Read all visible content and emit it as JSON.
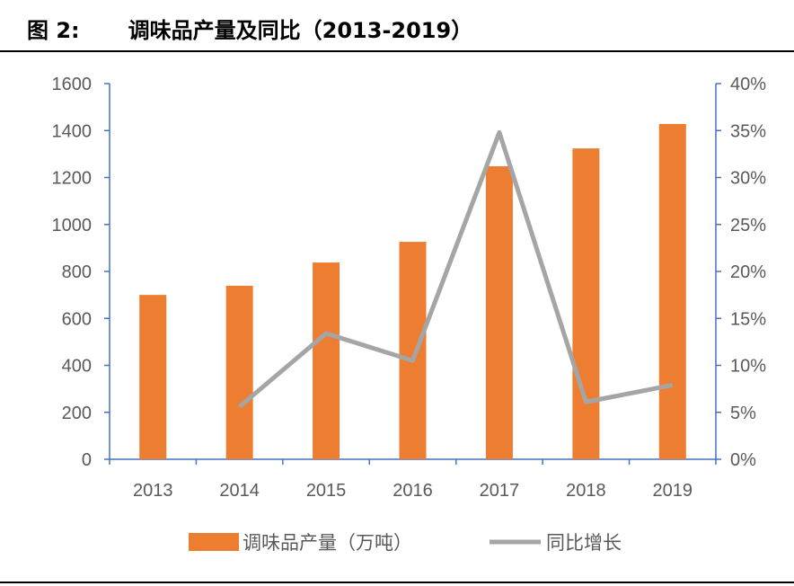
{
  "title": {
    "label": "图 2:",
    "text": "调味品产量及同比（2013-2019）"
  },
  "chart_data": {
    "type": "bar",
    "title": "调味品产量及同比（2013-2019）",
    "categories": [
      "2013",
      "2014",
      "2015",
      "2016",
      "2017",
      "2018",
      "2019"
    ],
    "series": [
      {
        "name": "调味品产量（万吨）",
        "type": "bar",
        "axis": "left",
        "color": "#ED7D31",
        "values": [
          700,
          739,
          838,
          926,
          1248,
          1324,
          1428
        ]
      },
      {
        "name": "同比增长",
        "type": "line",
        "axis": "right",
        "color": "#A5A5A5",
        "values": [
          null,
          5.6,
          13.4,
          10.5,
          34.8,
          6.1,
          7.9
        ]
      }
    ],
    "left_axis": {
      "ylim": [
        0,
        1600
      ],
      "ticks": [
        "0",
        "200",
        "400",
        "600",
        "800",
        "1000",
        "1200",
        "1400",
        "1600"
      ]
    },
    "right_axis": {
      "ylim": [
        0,
        40
      ],
      "unit": "%",
      "ticks": [
        "0%",
        "5%",
        "10%",
        "15%",
        "20%",
        "25%",
        "30%",
        "35%",
        "40%"
      ]
    },
    "axis_color": "#4472C4",
    "grid": false,
    "legend": "bottom"
  }
}
